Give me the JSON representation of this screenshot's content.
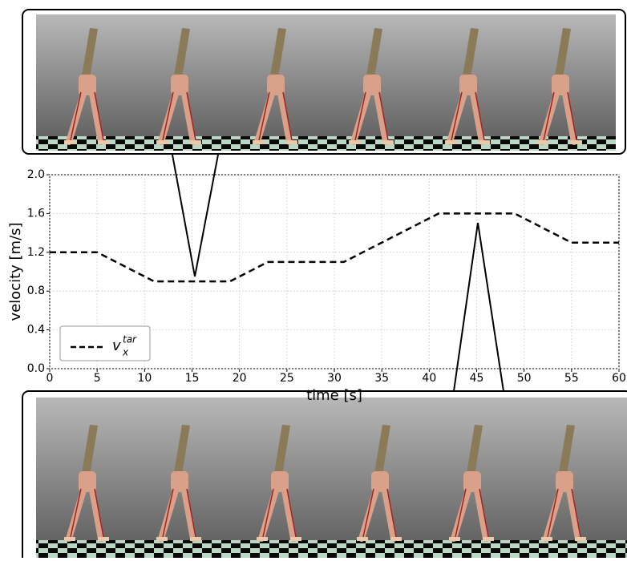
{
  "chart_data": {
    "type": "line",
    "x_label": "time [s]",
    "y_label": "velocity [m/s]",
    "x": [
      0,
      5,
      11,
      19,
      23,
      31,
      41,
      49,
      55,
      60
    ],
    "series": [
      {
        "name": "v",
        "name_sub": "x",
        "name_sup": "tar",
        "color": "#000000",
        "values": [
          1.2,
          1.2,
          0.9,
          0.9,
          1.1,
          1.1,
          1.6,
          1.6,
          1.3,
          1.3
        ]
      }
    ],
    "xlim": [
      0,
      60
    ],
    "xticks": [
      0,
      5,
      10,
      15,
      20,
      25,
      30,
      35,
      40,
      45,
      50,
      55,
      60
    ],
    "ylim": [
      0,
      2.0
    ],
    "yticks": [
      {
        "value": 0,
        "label": "0.0"
      },
      0.4,
      0.8,
      1.2,
      1.6,
      {
        "value": 2.0,
        "label": "2.0"
      }
    ],
    "grid": true,
    "legend": "lower left",
    "line_style": "dashed"
  }
}
